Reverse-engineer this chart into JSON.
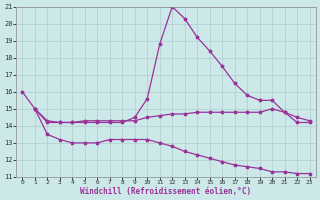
{
  "xlabel": "Windchill (Refroidissement éolien,°C)",
  "xlim": [
    -0.5,
    23.5
  ],
  "ylim": [
    11,
    21
  ],
  "yticks": [
    11,
    12,
    13,
    14,
    15,
    16,
    17,
    18,
    19,
    20,
    21
  ],
  "xticks": [
    0,
    1,
    2,
    3,
    4,
    5,
    6,
    7,
    8,
    9,
    10,
    11,
    12,
    13,
    14,
    15,
    16,
    17,
    18,
    19,
    20,
    21,
    22,
    23
  ],
  "background_color": "#cce8e8",
  "grid_color": "#b0cccc",
  "line_color": "#993399",
  "line1_x": [
    0,
    1,
    2,
    3,
    4,
    5,
    6,
    7,
    8,
    9,
    10,
    11,
    12,
    13,
    14,
    15,
    16,
    17,
    18,
    19,
    20,
    21,
    22,
    23
  ],
  "line1_y": [
    16.0,
    15.0,
    14.2,
    14.2,
    14.2,
    14.2,
    14.2,
    14.2,
    14.2,
    14.5,
    15.6,
    18.8,
    21.0,
    20.3,
    19.2,
    18.4,
    17.5,
    16.5,
    15.8,
    15.5,
    15.5,
    14.8,
    14.2,
    14.2
  ],
  "line2_x": [
    1,
    2,
    3,
    4,
    5,
    6,
    7,
    8,
    9,
    10,
    11,
    12,
    13,
    14,
    15,
    16,
    17,
    18,
    19,
    20,
    21,
    22,
    23
  ],
  "line2_y": [
    15.0,
    14.3,
    14.2,
    14.2,
    14.3,
    14.3,
    14.3,
    14.3,
    14.3,
    14.5,
    14.6,
    14.7,
    14.7,
    14.8,
    14.8,
    14.8,
    14.8,
    14.8,
    14.8,
    15.0,
    14.8,
    14.5,
    14.3
  ],
  "line3_x": [
    1,
    2,
    3,
    4,
    5,
    6,
    7,
    8,
    9,
    10,
    11,
    12,
    13,
    14,
    15,
    16,
    17,
    18,
    19,
    20,
    21,
    22,
    23
  ],
  "line3_y": [
    15.0,
    13.5,
    13.2,
    13.0,
    13.0,
    13.0,
    13.2,
    13.2,
    13.2,
    13.2,
    13.0,
    12.8,
    12.5,
    12.3,
    12.1,
    11.9,
    11.7,
    11.6,
    11.5,
    11.3,
    11.3,
    11.2,
    11.2
  ]
}
